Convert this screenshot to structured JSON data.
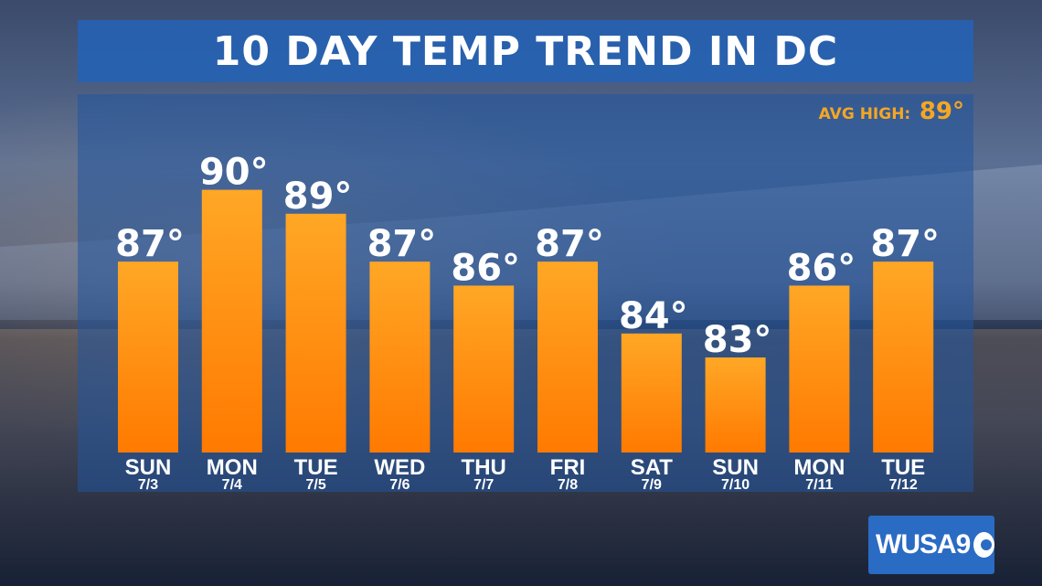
{
  "title": "10 DAY TEMP TREND IN DC",
  "avg_high": {
    "label": "AVG HIGH:",
    "value": "89°"
  },
  "logo": "WUSA9",
  "colors": {
    "bar_top": "#ffa726",
    "bar_bottom": "#ff7a00",
    "title_bg": "#2662b2",
    "avg_text": "#f5a623"
  },
  "chart_data": {
    "type": "bar",
    "title": "10 DAY TEMP TREND IN DC",
    "categories": [
      "SUN",
      "MON",
      "TUE",
      "WED",
      "THU",
      "FRI",
      "SAT",
      "SUN",
      "MON",
      "TUE"
    ],
    "dates": [
      "7/3",
      "7/4",
      "7/5",
      "7/6",
      "7/7",
      "7/8",
      "7/9",
      "7/10",
      "7/11",
      "7/12"
    ],
    "values": [
      87,
      90,
      89,
      87,
      86,
      87,
      84,
      83,
      86,
      87
    ],
    "value_labels": [
      "87°",
      "90°",
      "89°",
      "87°",
      "86°",
      "87°",
      "84°",
      "83°",
      "86°",
      "87°"
    ],
    "unit": "°",
    "grid": false,
    "legend": "none"
  }
}
